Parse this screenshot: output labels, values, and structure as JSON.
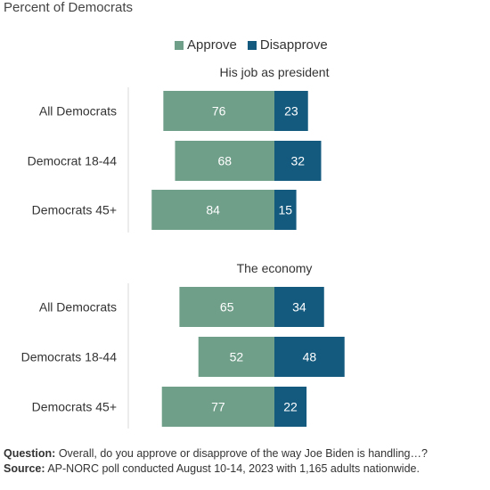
{
  "header": {
    "subtitle": "Percent of Democrats"
  },
  "legend": {
    "approve_label": "Approve",
    "disapprove_label": "Disapprove"
  },
  "colors": {
    "approve": "#6f9e89",
    "disapprove": "#145a7f",
    "axis": "#d9d9d9"
  },
  "chart_data": {
    "type": "bar",
    "orientation": "horizontal-diverging",
    "series": [
      {
        "name": "Approve",
        "color": "#6f9e89"
      },
      {
        "name": "Disapprove",
        "color": "#145a7f"
      }
    ],
    "panels": [
      {
        "title": "His job as president",
        "categories": [
          "All Democrats",
          "Democrat 18-44",
          "Democrats 45+"
        ],
        "approve": [
          76,
          68,
          84
        ],
        "disapprove": [
          23,
          32,
          15
        ]
      },
      {
        "title": "The economy",
        "categories": [
          "All Democrats",
          "Democrats 18-44",
          "Democrats 45+"
        ],
        "approve": [
          65,
          52,
          77
        ],
        "disapprove": [
          34,
          48,
          22
        ]
      }
    ]
  },
  "footer": {
    "question_label": "Question:",
    "question_text": " Overall, do you approve or disapprove of the way Joe Biden is handling…?",
    "source_label": "Source:",
    "source_text": " AP-NORC poll conducted August 10-14, 2023 with 1,165 adults nationwide."
  }
}
